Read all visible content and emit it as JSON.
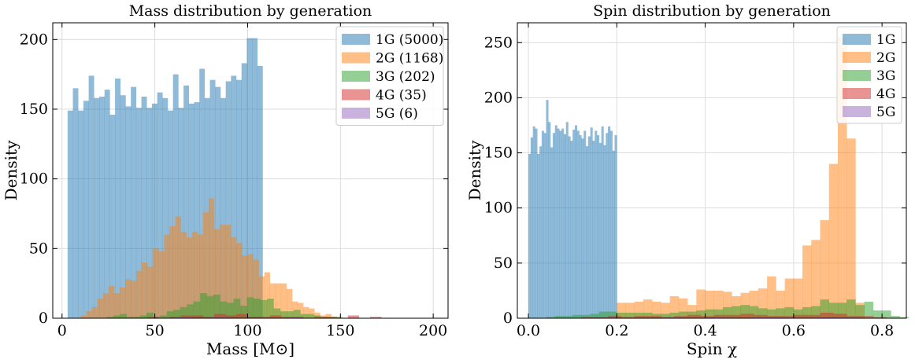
{
  "chart_data": [
    {
      "type": "bar",
      "title": "Mass distribution by generation",
      "xlabel": "Mass [M⊙]",
      "ylabel": "Density",
      "xlim": [
        -5,
        208
      ],
      "ylim": [
        0,
        212
      ],
      "xticks": [
        0,
        50,
        100,
        150,
        200
      ],
      "yticks": [
        0,
        50,
        100,
        150,
        200
      ],
      "grid": true,
      "legend_position": "top-right",
      "series": [
        {
          "name": "1G (5000)",
          "color": "#1f77b4",
          "bin_start": 3,
          "bin_width": 2.84,
          "values": [
            149,
            165,
            149,
            156,
            174,
            158,
            159,
            164,
            146,
            172,
            160,
            152,
            166,
            151,
            159,
            151,
            154,
            162,
            158,
            149,
            175,
            151,
            167,
            154,
            155,
            179,
            158,
            171,
            166,
            158,
            170,
            174,
            171,
            183,
            201,
            201,
            181
          ]
        },
        {
          "name": "2G (1168)",
          "color": "#ff7f0e",
          "bin_start": 10,
          "bin_width": 3.0,
          "values": [
            2,
            5,
            8,
            14,
            18,
            23,
            18,
            22,
            28,
            27,
            34,
            40,
            37,
            50,
            48,
            60,
            66,
            73,
            62,
            58,
            62,
            60,
            76,
            86,
            64,
            67,
            67,
            58,
            54,
            45,
            46,
            42,
            30,
            33,
            25,
            25,
            25,
            21,
            12,
            11,
            8,
            7,
            4,
            2,
            3,
            1,
            1,
            0,
            0
          ]
        },
        {
          "name": "3G (202)",
          "color": "#2ca02c",
          "bin_start": 24,
          "bin_width": 3.6,
          "values": [
            1,
            2,
            3,
            1,
            1,
            2,
            4,
            1,
            2,
            5,
            6,
            8,
            10,
            12,
            18,
            16,
            17,
            12,
            11,
            14,
            9,
            15,
            14,
            13,
            14,
            7,
            5,
            5,
            6,
            3,
            3,
            2,
            1,
            1,
            1,
            0
          ]
        },
        {
          "name": "4G (35)",
          "color": "#d62728",
          "bin_start": 40,
          "bin_width": 6,
          "values": [
            0,
            1,
            0,
            1,
            2,
            2,
            1,
            3,
            2,
            3,
            1,
            1,
            2,
            1,
            1,
            0,
            1,
            1,
            0,
            2,
            0,
            1
          ]
        },
        {
          "name": "5G (6)",
          "color": "#9467bd",
          "bin_start": 60,
          "bin_width": 10,
          "values": [
            1,
            0,
            1,
            0,
            0,
            0,
            1,
            0,
            0,
            0,
            0,
            0,
            0,
            0
          ]
        }
      ]
    },
    {
      "type": "bar",
      "title": "Spin distribution by generation",
      "xlabel": "Spin χ",
      "ylabel": "Density",
      "xlim": [
        -0.025,
        0.855
      ],
      "ylim": [
        0,
        268
      ],
      "xticks": [
        "0.0",
        "0.2",
        "0.4",
        "0.6",
        "0.8"
      ],
      "yticks": [
        0,
        50,
        100,
        150,
        200,
        250
      ],
      "grid": true,
      "legend_position": "top-right",
      "series": [
        {
          "name": "1G",
          "color": "#1f77b4",
          "bin_start": 0,
          "bin_width": 0.005,
          "values": [
            149,
            164,
            174,
            172,
            149,
            156,
            170,
            168,
            198,
            178,
            155,
            168,
            175,
            172,
            170,
            172,
            167,
            178,
            165,
            161,
            171,
            175,
            170,
            166,
            163,
            170,
            156,
            165,
            173,
            161,
            170,
            166,
            159,
            174,
            157,
            168,
            174,
            170,
            152,
            166
          ]
        },
        {
          "name": "2G",
          "color": "#ff7f0e",
          "bin_start": 0.2,
          "bin_width": 0.02,
          "values": [
            14,
            14,
            15,
            17,
            15,
            14,
            20,
            18,
            12,
            26,
            25,
            25,
            24,
            20,
            23,
            25,
            27,
            38,
            25,
            36,
            36,
            66,
            71,
            89,
            140,
            255,
            163,
            14
          ]
        },
        {
          "name": "3G",
          "color": "#2ca02c",
          "bin_start": 0,
          "bin_width": 0.02,
          "values": [
            0,
            0,
            1,
            2,
            2,
            3,
            3,
            4,
            6,
            6,
            5,
            5,
            5,
            5,
            4,
            4,
            5,
            6,
            6,
            7,
            8,
            8,
            10,
            11,
            12,
            11,
            9,
            8,
            9,
            10,
            8,
            10,
            11,
            17,
            14,
            14,
            17,
            12,
            15,
            7,
            7,
            2,
            1
          ]
        },
        {
          "name": "4G",
          "color": "#d62728",
          "bin_start": 0.12,
          "bin_width": 0.03,
          "values": [
            1,
            1,
            2,
            1,
            2,
            2,
            1,
            2,
            3,
            2,
            3,
            3,
            4,
            3,
            2,
            2,
            3,
            3,
            5,
            4,
            2,
            2,
            1
          ]
        },
        {
          "name": "5G",
          "color": "#9467bd",
          "bin_start": 0.3,
          "bin_width": 0.05,
          "values": [
            1,
            0,
            1,
            0,
            1,
            1,
            0,
            1,
            1,
            0
          ]
        }
      ]
    }
  ]
}
